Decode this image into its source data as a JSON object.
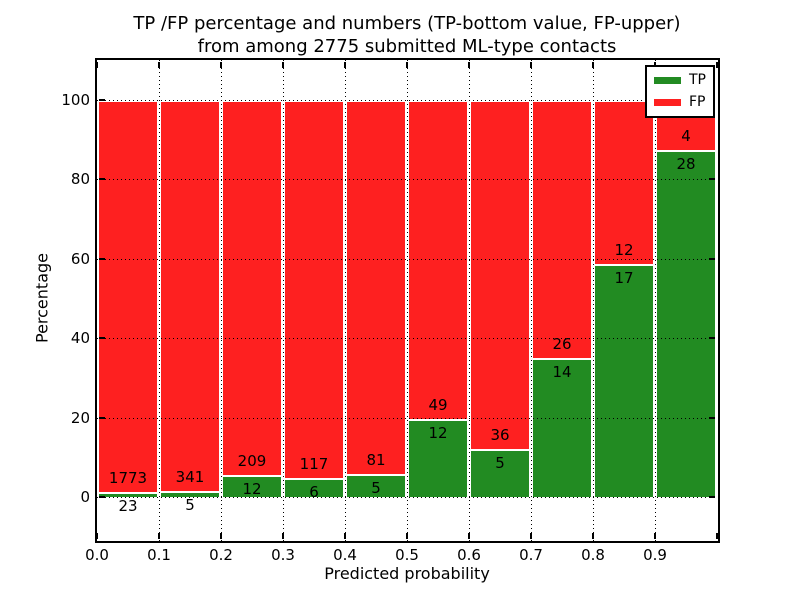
{
  "title": {
    "line1": "TP /FP percentage and numbers (TP-bottom value, FP-upper)",
    "line2": "from among 2775 submitted ML-type contacts"
  },
  "axes": {
    "xlabel": "Predicted probability",
    "ylabel": "Percentage",
    "yticks": [
      "0",
      "20",
      "40",
      "60",
      "80",
      "100"
    ],
    "ytick_values": [
      0,
      20,
      40,
      60,
      80,
      100
    ],
    "xticks": [
      "0.0",
      "0.1",
      "0.2",
      "0.3",
      "0.4",
      "0.5",
      "0.6",
      "0.7",
      "0.8",
      "0.9"
    ]
  },
  "legend": {
    "items": [
      {
        "label": "TP",
        "color": "#228b22"
      },
      {
        "label": "FP",
        "color": "#fe2020"
      }
    ],
    "position": "upper right"
  },
  "colors": {
    "tp": "#228b22",
    "fp": "#fe2020",
    "grid": "#000000",
    "background": "#ffffff"
  },
  "chart_data": {
    "type": "bar",
    "stacked": true,
    "normalized_to_percent": true,
    "title": "TP /FP percentage and numbers (TP-bottom value, FP-upper)\nfrom among 2775 submitted ML-type contacts",
    "xlabel": "Predicted probability",
    "ylabel": "Percentage",
    "total_contacts": 2775,
    "categories": [
      "0.0-0.1",
      "0.1-0.2",
      "0.2-0.3",
      "0.3-0.4",
      "0.4-0.5",
      "0.5-0.6",
      "0.6-0.7",
      "0.7-0.8",
      "0.8-0.9",
      "0.9-1.0"
    ],
    "bin_edges": [
      0.0,
      0.1,
      0.2,
      0.3,
      0.4,
      0.5,
      0.6,
      0.7,
      0.8,
      0.9,
      1.0
    ],
    "series": [
      {
        "name": "TP",
        "color": "#228b22",
        "counts": [
          23,
          5,
          12,
          6,
          5,
          12,
          5,
          14,
          17,
          28
        ],
        "pct": [
          1.28,
          1.45,
          5.43,
          4.88,
          5.81,
          19.67,
          12.2,
          35.0,
          58.62,
          87.5
        ]
      },
      {
        "name": "FP",
        "color": "#fe2020",
        "counts": [
          1773,
          341,
          209,
          117,
          81,
          49,
          36,
          26,
          12,
          4
        ],
        "pct": [
          98.72,
          98.55,
          94.57,
          95.12,
          94.19,
          80.33,
          87.8,
          65.0,
          41.38,
          12.5
        ]
      }
    ],
    "ylim": [
      -11,
      110
    ],
    "xlim": [
      0.0,
      1.0
    ],
    "grid": true,
    "grid_style": "dotted",
    "legend_position": "upper right"
  }
}
